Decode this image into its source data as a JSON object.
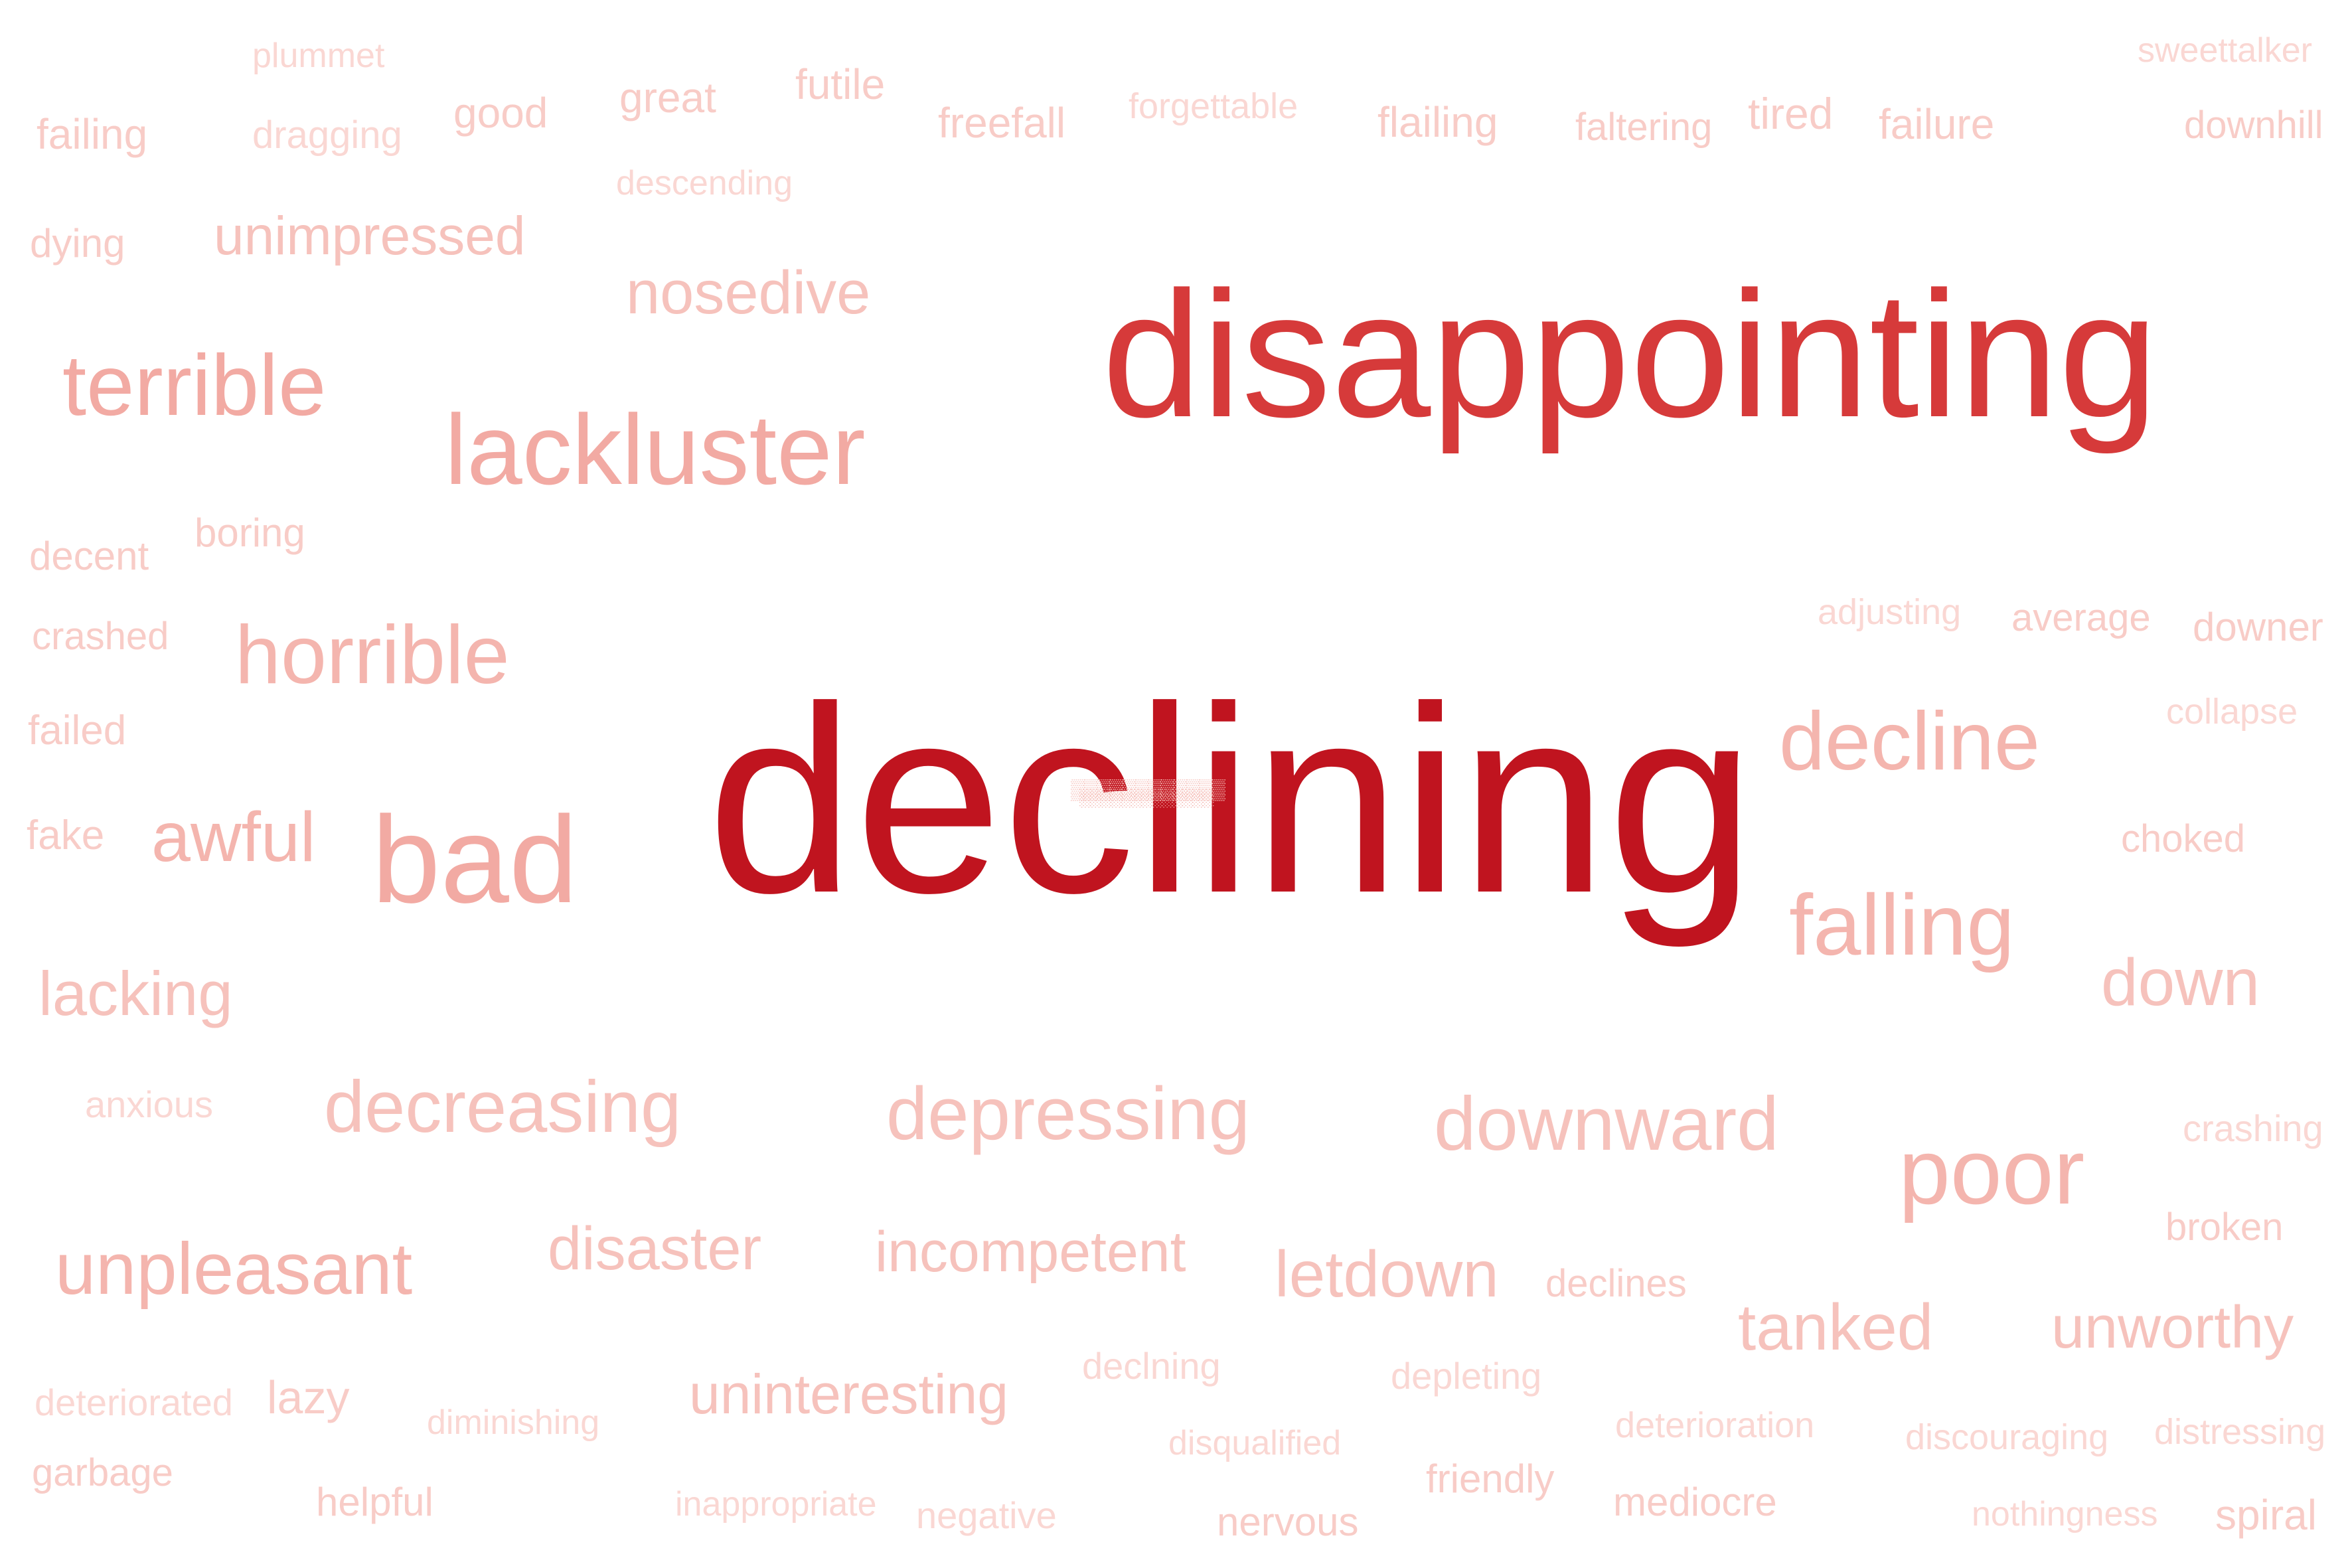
{
  "words": [
    {
      "text": "plummet"
    },
    {
      "text": "sweettalker"
    },
    {
      "text": "failing"
    },
    {
      "text": "dragging"
    },
    {
      "text": "good"
    },
    {
      "text": "great"
    },
    {
      "text": "futile"
    },
    {
      "text": "freefall"
    },
    {
      "text": "forgettable"
    },
    {
      "text": "flailing"
    },
    {
      "text": "faltering"
    },
    {
      "text": "tired"
    },
    {
      "text": "failure"
    },
    {
      "text": "downhill"
    },
    {
      "text": "descending"
    },
    {
      "text": "dying"
    },
    {
      "text": "unimpressed"
    },
    {
      "text": "nosedive"
    },
    {
      "text": "disappointing"
    },
    {
      "text": "terrible"
    },
    {
      "text": "lackluster"
    },
    {
      "text": "decent"
    },
    {
      "text": "boring"
    },
    {
      "text": "crashed"
    },
    {
      "text": "horrible"
    },
    {
      "text": "adjusting"
    },
    {
      "text": "average"
    },
    {
      "text": "downer"
    },
    {
      "text": "collapse"
    },
    {
      "text": "failed"
    },
    {
      "text": "declining"
    },
    {
      "text": "decline"
    },
    {
      "text": "fake"
    },
    {
      "text": "awful"
    },
    {
      "text": "bad"
    },
    {
      "text": "choked"
    },
    {
      "text": "falling"
    },
    {
      "text": "down"
    },
    {
      "text": "lacking"
    },
    {
      "text": "anxious"
    },
    {
      "text": "decreasing"
    },
    {
      "text": "depressing"
    },
    {
      "text": "downward"
    },
    {
      "text": "crashing"
    },
    {
      "text": "poor"
    },
    {
      "text": "broken"
    },
    {
      "text": "unpleasant"
    },
    {
      "text": "disaster"
    },
    {
      "text": "incompetent"
    },
    {
      "text": "letdown"
    },
    {
      "text": "declines"
    },
    {
      "text": "tanked"
    },
    {
      "text": "unworthy"
    },
    {
      "text": "declning"
    },
    {
      "text": "deteriorated"
    },
    {
      "text": "lazy"
    },
    {
      "text": "diminishing"
    },
    {
      "text": "uninteresting"
    },
    {
      "text": "depleting"
    },
    {
      "text": "deterioration"
    },
    {
      "text": "discouraging"
    },
    {
      "text": "distressing"
    },
    {
      "text": "disqualified"
    },
    {
      "text": "garbage"
    },
    {
      "text": "friendly"
    },
    {
      "text": "helpful"
    },
    {
      "text": "inappropriate"
    },
    {
      "text": "negative"
    },
    {
      "text": "nervous"
    },
    {
      "text": "mediocre"
    },
    {
      "text": "nothingness"
    },
    {
      "text": "spiral"
    }
  ],
  "colors": {
    "largest": "#c0141f",
    "large": "#d63a3a",
    "medium": "#f2aaa3",
    "light": "#f6c2bc",
    "faint": "#fad7d3"
  }
}
